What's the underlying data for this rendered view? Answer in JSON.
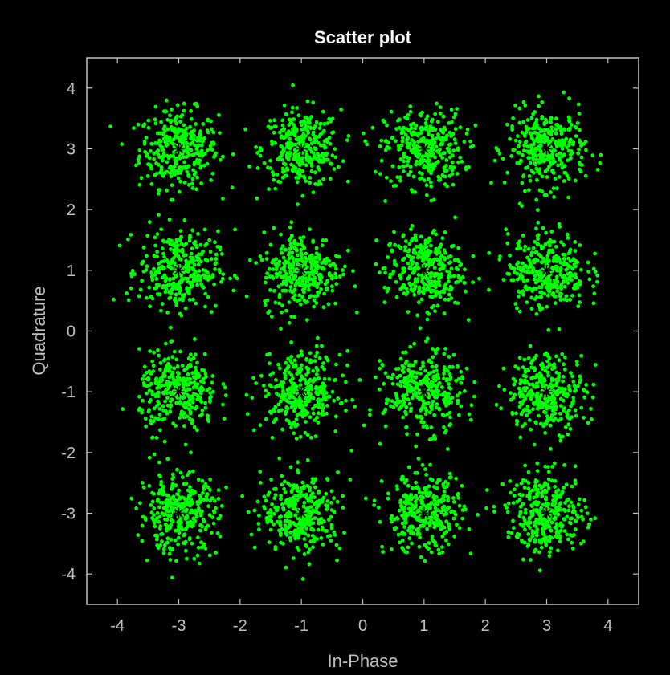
{
  "chart_data": {
    "type": "scatter",
    "title": "Scatter plot",
    "xlabel": "In-Phase",
    "ylabel": "Quadrature",
    "xlim": [
      -4.5,
      4.5
    ],
    "ylim": [
      -4.5,
      4.5
    ],
    "x_ticks": [
      -4,
      -3,
      -2,
      -1,
      0,
      1,
      2,
      3,
      4
    ],
    "y_ticks": [
      -4,
      -3,
      -2,
      -1,
      0,
      1,
      2,
      3,
      4
    ],
    "grid": false,
    "background_color": "#000000",
    "axes_color": "#c0c0c0",
    "title_color": "#ffffff",
    "series": [
      {
        "marker": "dot",
        "color": "#00ff00",
        "points_per_cluster": 330,
        "noise_std": 0.32,
        "cluster_centers": [
          [
            -3,
            3
          ],
          [
            -1,
            3
          ],
          [
            1,
            3
          ],
          [
            3,
            3
          ],
          [
            -3,
            1
          ],
          [
            -1,
            1
          ],
          [
            1,
            1
          ],
          [
            3,
            1
          ],
          [
            -3,
            -1
          ],
          [
            -1,
            -1
          ],
          [
            1,
            -1
          ],
          [
            3,
            -1
          ],
          [
            -3,
            -3
          ],
          [
            -1,
            -3
          ],
          [
            1,
            -3
          ],
          [
            3,
            -3
          ]
        ]
      },
      {
        "marker": "star",
        "color": "#000000",
        "x": [
          -3,
          -1,
          1,
          3,
          -3,
          -1,
          1,
          3,
          -3,
          -1,
          1,
          3,
          -3,
          -1,
          1,
          3
        ],
        "y": [
          3,
          3,
          3,
          3,
          1,
          1,
          1,
          1,
          -1,
          -1,
          -1,
          -1,
          -3,
          -3,
          -3,
          -3
        ]
      }
    ]
  }
}
